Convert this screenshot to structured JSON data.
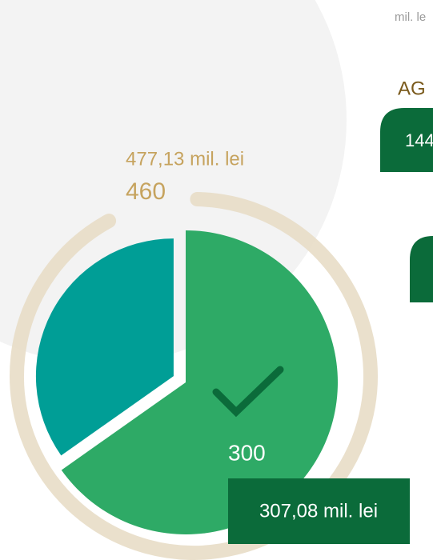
{
  "chart_data": {
    "type": "pie",
    "values": [
      300,
      160
    ],
    "colors": [
      "#2eaa66",
      "#009e96"
    ],
    "total": 460,
    "total_color": "#e6dbc3",
    "total_label": "477,13 mil. lei",
    "amount_label": "307,08 mil. lei"
  },
  "side_texts": {
    "unit": "mil. le",
    "heading": "AG",
    "box_value": "144"
  }
}
